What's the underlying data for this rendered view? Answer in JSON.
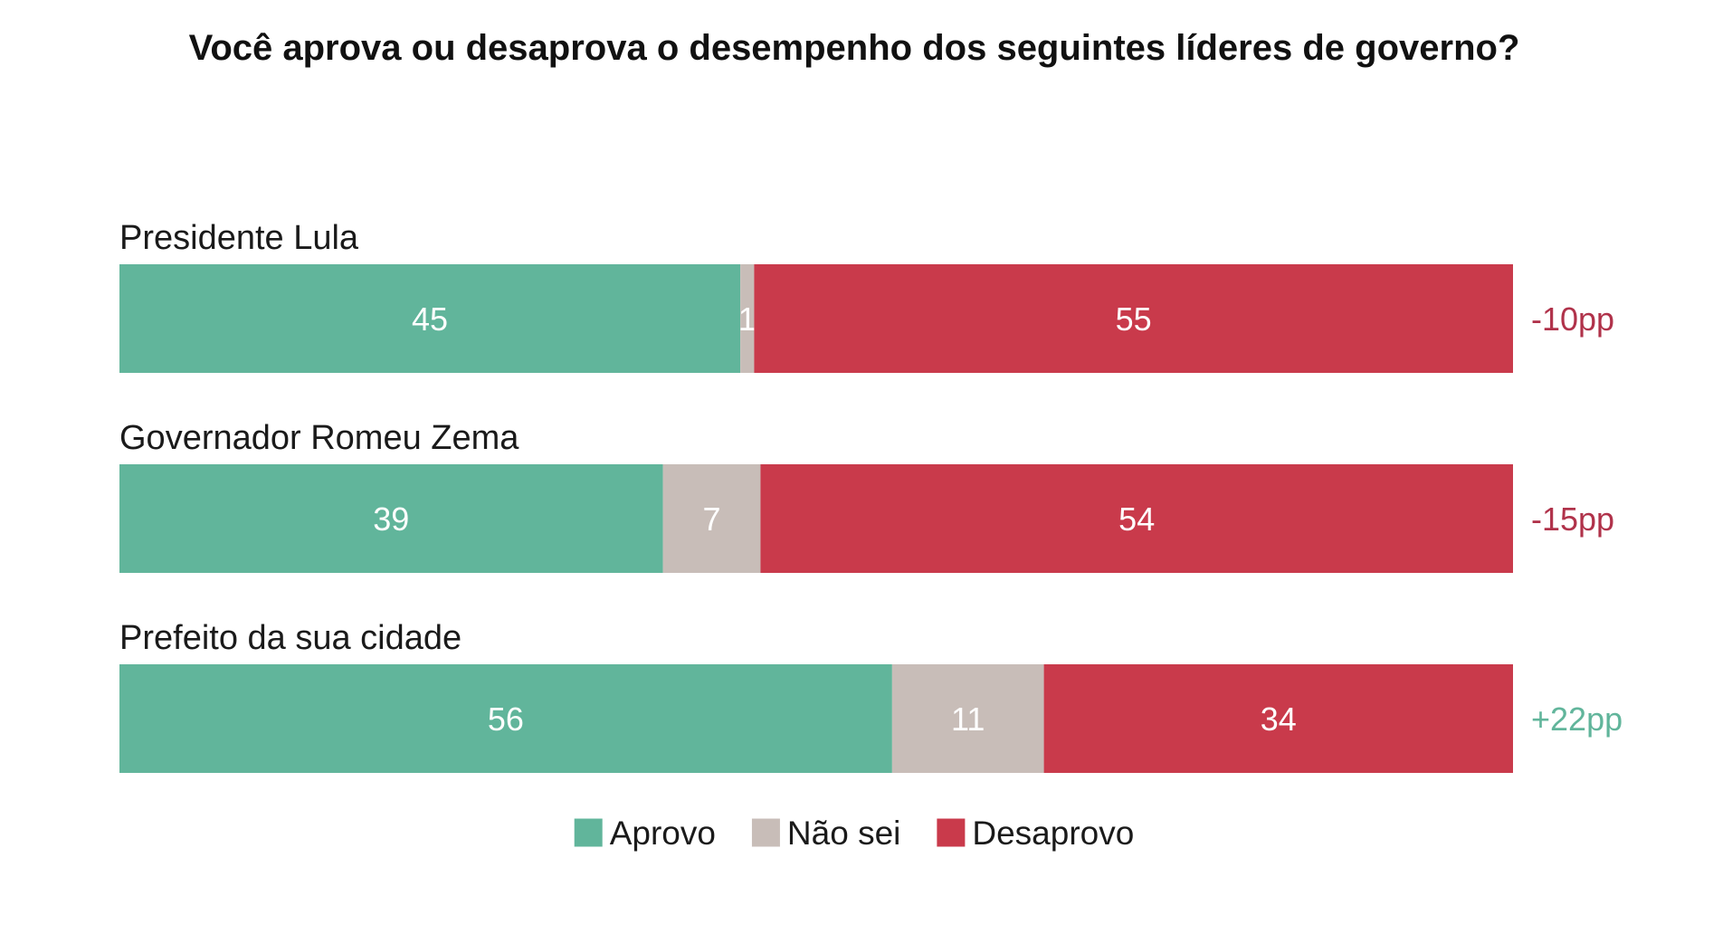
{
  "chart_data": {
    "type": "bar",
    "orientation": "horizontal",
    "stacked": true,
    "title": "Você aprova ou desaprova o desempenho dos seguintes líderes de governo?",
    "categories": [
      "Presidente Lula",
      "Governador Romeu Zema",
      "Prefeito da sua cidade"
    ],
    "series": [
      {
        "name": "Aprovo",
        "color": "#61b59b",
        "values": [
          45,
          39,
          56
        ]
      },
      {
        "name": "Não sei",
        "color": "#c8bdb8",
        "values": [
          1,
          7,
          11
        ]
      },
      {
        "name": "Desaprovo",
        "color": "#c93a4b",
        "values": [
          55,
          54,
          34
        ]
      }
    ],
    "net_labels": [
      "-10pp",
      "-15pp",
      "+22pp"
    ],
    "net_colors": [
      "#b0324a",
      "#b0324a",
      "#61b59b"
    ],
    "legend_position": "bottom-center",
    "grid": false
  }
}
